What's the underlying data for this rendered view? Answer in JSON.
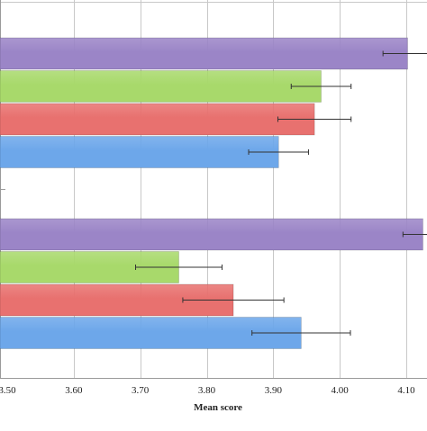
{
  "chart_data": {
    "type": "bar",
    "orientation": "horizontal",
    "xlabel": "Mean score",
    "xlim": [
      3.5,
      4.12
    ],
    "x_ticks": [
      3.5,
      3.6,
      3.7,
      3.8,
      3.9,
      4.0,
      4.1
    ],
    "x_tick_labels": [
      "3.50",
      "3.60",
      "3.70",
      "3.80",
      "3.90",
      "4.00",
      "4.10"
    ],
    "grid": true,
    "groups": [
      {
        "bars": [
          {
            "value": 4.102,
            "err": 0.037,
            "color": "#9b85c7"
          },
          {
            "value": 3.972,
            "err": 0.045,
            "color": "#a8d96b"
          },
          {
            "value": 3.962,
            "err": 0.055,
            "color": "#e8716f"
          },
          {
            "value": 3.908,
            "err": 0.045,
            "color": "#6da7ea"
          }
        ]
      },
      {
        "bars": [
          {
            "value": 4.125,
            "err": 0.03,
            "color": "#9b85c7"
          },
          {
            "value": 3.758,
            "err": 0.065,
            "color": "#a8d96b"
          },
          {
            "value": 3.84,
            "err": 0.076,
            "color": "#e8716f"
          },
          {
            "value": 3.942,
            "err": 0.074,
            "color": "#6da7ea"
          }
        ]
      }
    ]
  }
}
